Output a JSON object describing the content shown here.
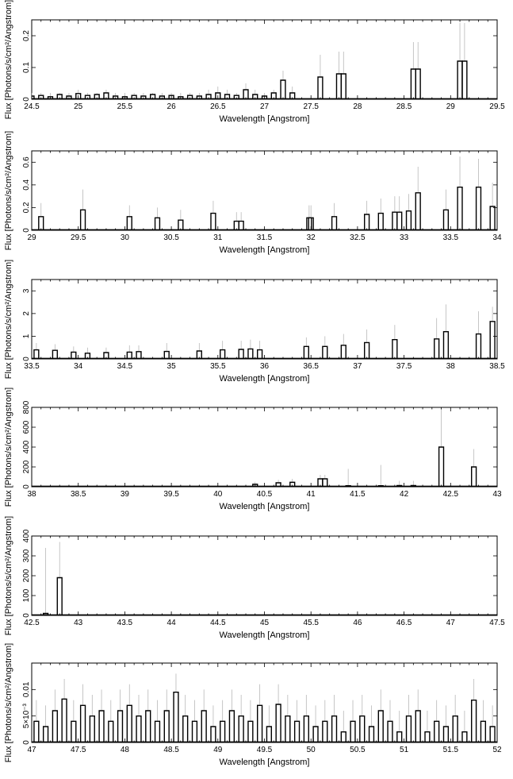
{
  "chart_data": [
    {
      "type": "line",
      "style": "step-with-error-bars",
      "xlabel": "Wavelength [Angstrom]",
      "ylabel": "Flux [Photons/s/cm²/Angstrom]",
      "xlim": [
        24.5,
        29.5
      ],
      "ylim": [
        0,
        0.25
      ],
      "xticks": [
        24.5,
        25,
        25.5,
        26,
        26.5,
        27,
        27.5,
        28,
        28.5,
        29,
        29.5
      ],
      "xtick_labels": [
        "24.5",
        "25",
        "25.5",
        "26",
        "26.5",
        "27",
        "27.5",
        "28",
        "28.5",
        "29",
        "29.5"
      ],
      "yticks": [
        0,
        0.1,
        0.2
      ],
      "ytick_labels": [
        "0",
        "0.1",
        "0.2"
      ],
      "series": [
        {
          "x": [
            24.5,
            24.6,
            24.7,
            24.8,
            24.9,
            25.0,
            25.1,
            25.2,
            25.3,
            25.4,
            25.5,
            25.6,
            25.7,
            25.8,
            25.9,
            26.0,
            26.1,
            26.2,
            26.3,
            26.4,
            26.5,
            26.6,
            26.7,
            26.8,
            26.9,
            27.0,
            27.1,
            27.2,
            27.3,
            27.6,
            27.8,
            27.85,
            28.6,
            28.65,
            29.1,
            29.15
          ],
          "y": [
            0.01,
            0.012,
            0.008,
            0.015,
            0.01,
            0.018,
            0.012,
            0.015,
            0.02,
            0.01,
            0.008,
            0.012,
            0.01,
            0.015,
            0.01,
            0.012,
            0.008,
            0.012,
            0.01,
            0.015,
            0.02,
            0.015,
            0.012,
            0.03,
            0.015,
            0.01,
            0.02,
            0.06,
            0.02,
            0.07,
            0.08,
            0.08,
            0.095,
            0.095,
            0.12,
            0.12
          ],
          "err_hi": [
            0.02,
            0.02,
            0.02,
            0.02,
            0.02,
            0.03,
            0.02,
            0.02,
            0.03,
            0.02,
            0.02,
            0.02,
            0.02,
            0.02,
            0.02,
            0.02,
            0.02,
            0.02,
            0.02,
            0.03,
            0.04,
            0.03,
            0.02,
            0.05,
            0.03,
            0.02,
            0.03,
            0.09,
            0.04,
            0.14,
            0.15,
            0.15,
            0.18,
            0.18,
            0.24,
            0.24
          ]
        }
      ]
    },
    {
      "type": "line",
      "style": "step-with-error-bars",
      "xlabel": "Wavelength [Angstrom]",
      "ylabel": "Flux [Photons/s/cm²/Angstrom]",
      "xlim": [
        29,
        34
      ],
      "ylim": [
        0,
        0.7
      ],
      "xticks": [
        29,
        29.5,
        30,
        30.5,
        31,
        31.5,
        32,
        32.5,
        33,
        33.5,
        34
      ],
      "xtick_labels": [
        "29",
        "29.5",
        "30",
        "30.5",
        "31",
        "31.5",
        "32",
        "32.5",
        "33",
        "33.5",
        "34"
      ],
      "yticks": [
        0,
        0.2,
        0.4,
        0.6
      ],
      "ytick_labels": [
        "0",
        "0.2",
        "0.4",
        "0.6"
      ],
      "series": [
        {
          "x": [
            29.1,
            29.55,
            30.05,
            30.35,
            30.6,
            30.95,
            31.2,
            31.25,
            31.98,
            32.0,
            32.25,
            32.6,
            32.75,
            32.9,
            32.95,
            33.05,
            33.15,
            33.45,
            33.6,
            33.8,
            33.95
          ],
          "y": [
            0.12,
            0.18,
            0.12,
            0.11,
            0.09,
            0.15,
            0.08,
            0.08,
            0.11,
            0.11,
            0.12,
            0.14,
            0.15,
            0.16,
            0.16,
            0.17,
            0.33,
            0.18,
            0.38,
            0.38,
            0.21
          ],
          "err_hi": [
            0.24,
            0.36,
            0.22,
            0.2,
            0.18,
            0.26,
            0.16,
            0.16,
            0.22,
            0.22,
            0.24,
            0.26,
            0.28,
            0.3,
            0.3,
            0.32,
            0.56,
            0.36,
            0.65,
            0.63,
            0.42
          ]
        }
      ]
    },
    {
      "type": "line",
      "style": "step-with-error-bars",
      "xlabel": "Wavelength [Angstrom]",
      "ylabel": "Flux [Photons/s/cm²/Angstrom]",
      "xlim": [
        33.5,
        38.5
      ],
      "ylim": [
        0,
        3.5
      ],
      "xticks": [
        33.5,
        34,
        34.5,
        35,
        35.5,
        36,
        36.5,
        37,
        37.5,
        38,
        38.5
      ],
      "xtick_labels": [
        "33.5",
        "34",
        "34.5",
        "35",
        "35.5",
        "36",
        "36.5",
        "37",
        "37.5",
        "38",
        "38.5"
      ],
      "yticks": [
        0,
        1,
        2,
        3
      ],
      "ytick_labels": [
        "0",
        "1",
        "2",
        "3"
      ],
      "series": [
        {
          "x": [
            33.55,
            33.75,
            33.95,
            34.1,
            34.3,
            34.55,
            34.65,
            34.95,
            35.3,
            35.55,
            35.75,
            35.85,
            35.95,
            36.45,
            36.65,
            36.85,
            37.1,
            37.4,
            37.85,
            37.95,
            38.3,
            38.45
          ],
          "y": [
            0.4,
            0.38,
            0.3,
            0.25,
            0.28,
            0.3,
            0.32,
            0.33,
            0.35,
            0.4,
            0.42,
            0.44,
            0.4,
            0.55,
            0.55,
            0.6,
            0.72,
            0.85,
            0.88,
            1.2,
            1.1,
            1.65
          ],
          "err_hi": [
            0.7,
            0.65,
            0.55,
            0.5,
            0.5,
            0.6,
            0.6,
            0.7,
            0.7,
            0.8,
            0.8,
            0.85,
            0.8,
            0.95,
            1.0,
            1.1,
            1.3,
            1.5,
            1.8,
            2.4,
            2.1,
            2.3
          ]
        }
      ]
    },
    {
      "type": "line",
      "style": "step-with-error-bars",
      "xlabel": "Wavelength [Angstrom]",
      "ylabel": "Flux [Photons/s/cm²/Angstrom]",
      "xlim": [
        38,
        43
      ],
      "ylim": [
        0,
        800
      ],
      "xticks": [
        38,
        38.5,
        39,
        39.5,
        40,
        40.5,
        41,
        41.5,
        42,
        42.5,
        43
      ],
      "xtick_labels": [
        "38",
        "38.5",
        "39",
        "39.5",
        "40",
        "40.5",
        "41",
        "41.5",
        "42",
        "42.5",
        "43"
      ],
      "yticks": [
        0,
        200,
        400,
        600,
        800
      ],
      "ytick_labels": [
        "0",
        "200",
        "400",
        "600",
        "800"
      ],
      "series": [
        {
          "x": [
            40.4,
            40.65,
            40.8,
            41.1,
            41.15,
            41.4,
            41.75,
            41.95,
            42.1,
            42.4,
            42.75
          ],
          "y": [
            25,
            40,
            45,
            80,
            80,
            10,
            10,
            12,
            12,
            400,
            200
          ],
          "err_hi": [
            50,
            70,
            80,
            120,
            120,
            180,
            220,
            60,
            60,
            780,
            380
          ]
        }
      ]
    },
    {
      "type": "line",
      "style": "step-with-error-bars",
      "xlabel": "Wavelength [Angstrom]",
      "ylabel": "Flux [Photons/s/cm²/Angstrom]",
      "xlim": [
        42.5,
        47.5
      ],
      "ylim": [
        0,
        400
      ],
      "xticks": [
        42.5,
        43,
        43.5,
        44,
        44.5,
        45,
        45.5,
        46,
        46.5,
        47,
        47.5
      ],
      "xtick_labels": [
        "42.5",
        "43",
        "43.5",
        "44",
        "44.5",
        "45",
        "45.5",
        "46",
        "46.5",
        "47",
        "47.5"
      ],
      "yticks": [
        0,
        100,
        200,
        300,
        400
      ],
      "ytick_labels": [
        "0",
        "100",
        "200",
        "300",
        "400"
      ],
      "series": [
        {
          "x": [
            42.65,
            42.8
          ],
          "y": [
            10,
            190
          ],
          "err_hi": [
            340,
            370
          ]
        }
      ]
    },
    {
      "type": "line",
      "style": "step-with-error-bars",
      "xlabel": "Wavelength [Angstrom]",
      "ylabel": "Flux [Photons/s/cm²/Angstrom]",
      "xlim": [
        47,
        52
      ],
      "ylim": [
        0,
        0.015
      ],
      "xticks": [
        47,
        47.5,
        48,
        48.5,
        49,
        49.5,
        50,
        50.5,
        51,
        51.5,
        52
      ],
      "xtick_labels": [
        "47",
        "47.5",
        "48",
        "48.5",
        "49",
        "49.5",
        "50",
        "50.5",
        "51",
        "51.5",
        "52"
      ],
      "yticks": [
        0,
        0.005,
        0.01
      ],
      "ytick_labels": [
        "0",
        "5×10⁻³",
        "0.01"
      ],
      "series": [
        {
          "x": [
            47.05,
            47.15,
            47.25,
            47.35,
            47.45,
            47.55,
            47.65,
            47.75,
            47.85,
            47.95,
            48.05,
            48.15,
            48.25,
            48.35,
            48.45,
            48.55,
            48.65,
            48.75,
            48.85,
            48.95,
            49.05,
            49.15,
            49.25,
            49.35,
            49.45,
            49.55,
            49.65,
            49.75,
            49.85,
            49.95,
            50.05,
            50.15,
            50.25,
            50.35,
            50.45,
            50.55,
            50.65,
            50.75,
            50.85,
            50.95,
            51.05,
            51.15,
            51.25,
            51.35,
            51.45,
            51.55,
            51.65,
            51.75,
            51.85,
            51.95
          ],
          "y": [
            0.004,
            0.003,
            0.006,
            0.0082,
            0.004,
            0.007,
            0.005,
            0.006,
            0.004,
            0.006,
            0.007,
            0.005,
            0.006,
            0.004,
            0.006,
            0.0095,
            0.005,
            0.004,
            0.006,
            0.003,
            0.004,
            0.006,
            0.005,
            0.004,
            0.007,
            0.003,
            0.0072,
            0.005,
            0.004,
            0.005,
            0.003,
            0.004,
            0.005,
            0.002,
            0.004,
            0.005,
            0.003,
            0.006,
            0.004,
            0.002,
            0.005,
            0.006,
            0.002,
            0.004,
            0.003,
            0.005,
            0.002,
            0.008,
            0.004,
            0.003
          ],
          "err_hi": [
            0.008,
            0.007,
            0.01,
            0.012,
            0.008,
            0.011,
            0.009,
            0.01,
            0.008,
            0.01,
            0.011,
            0.009,
            0.01,
            0.008,
            0.01,
            0.013,
            0.009,
            0.008,
            0.01,
            0.007,
            0.008,
            0.01,
            0.009,
            0.008,
            0.011,
            0.007,
            0.011,
            0.009,
            0.008,
            0.009,
            0.007,
            0.008,
            0.009,
            0.006,
            0.008,
            0.009,
            0.007,
            0.01,
            0.008,
            0.006,
            0.009,
            0.01,
            0.006,
            0.008,
            0.007,
            0.009,
            0.006,
            0.012,
            0.008,
            0.007
          ]
        }
      ]
    }
  ]
}
